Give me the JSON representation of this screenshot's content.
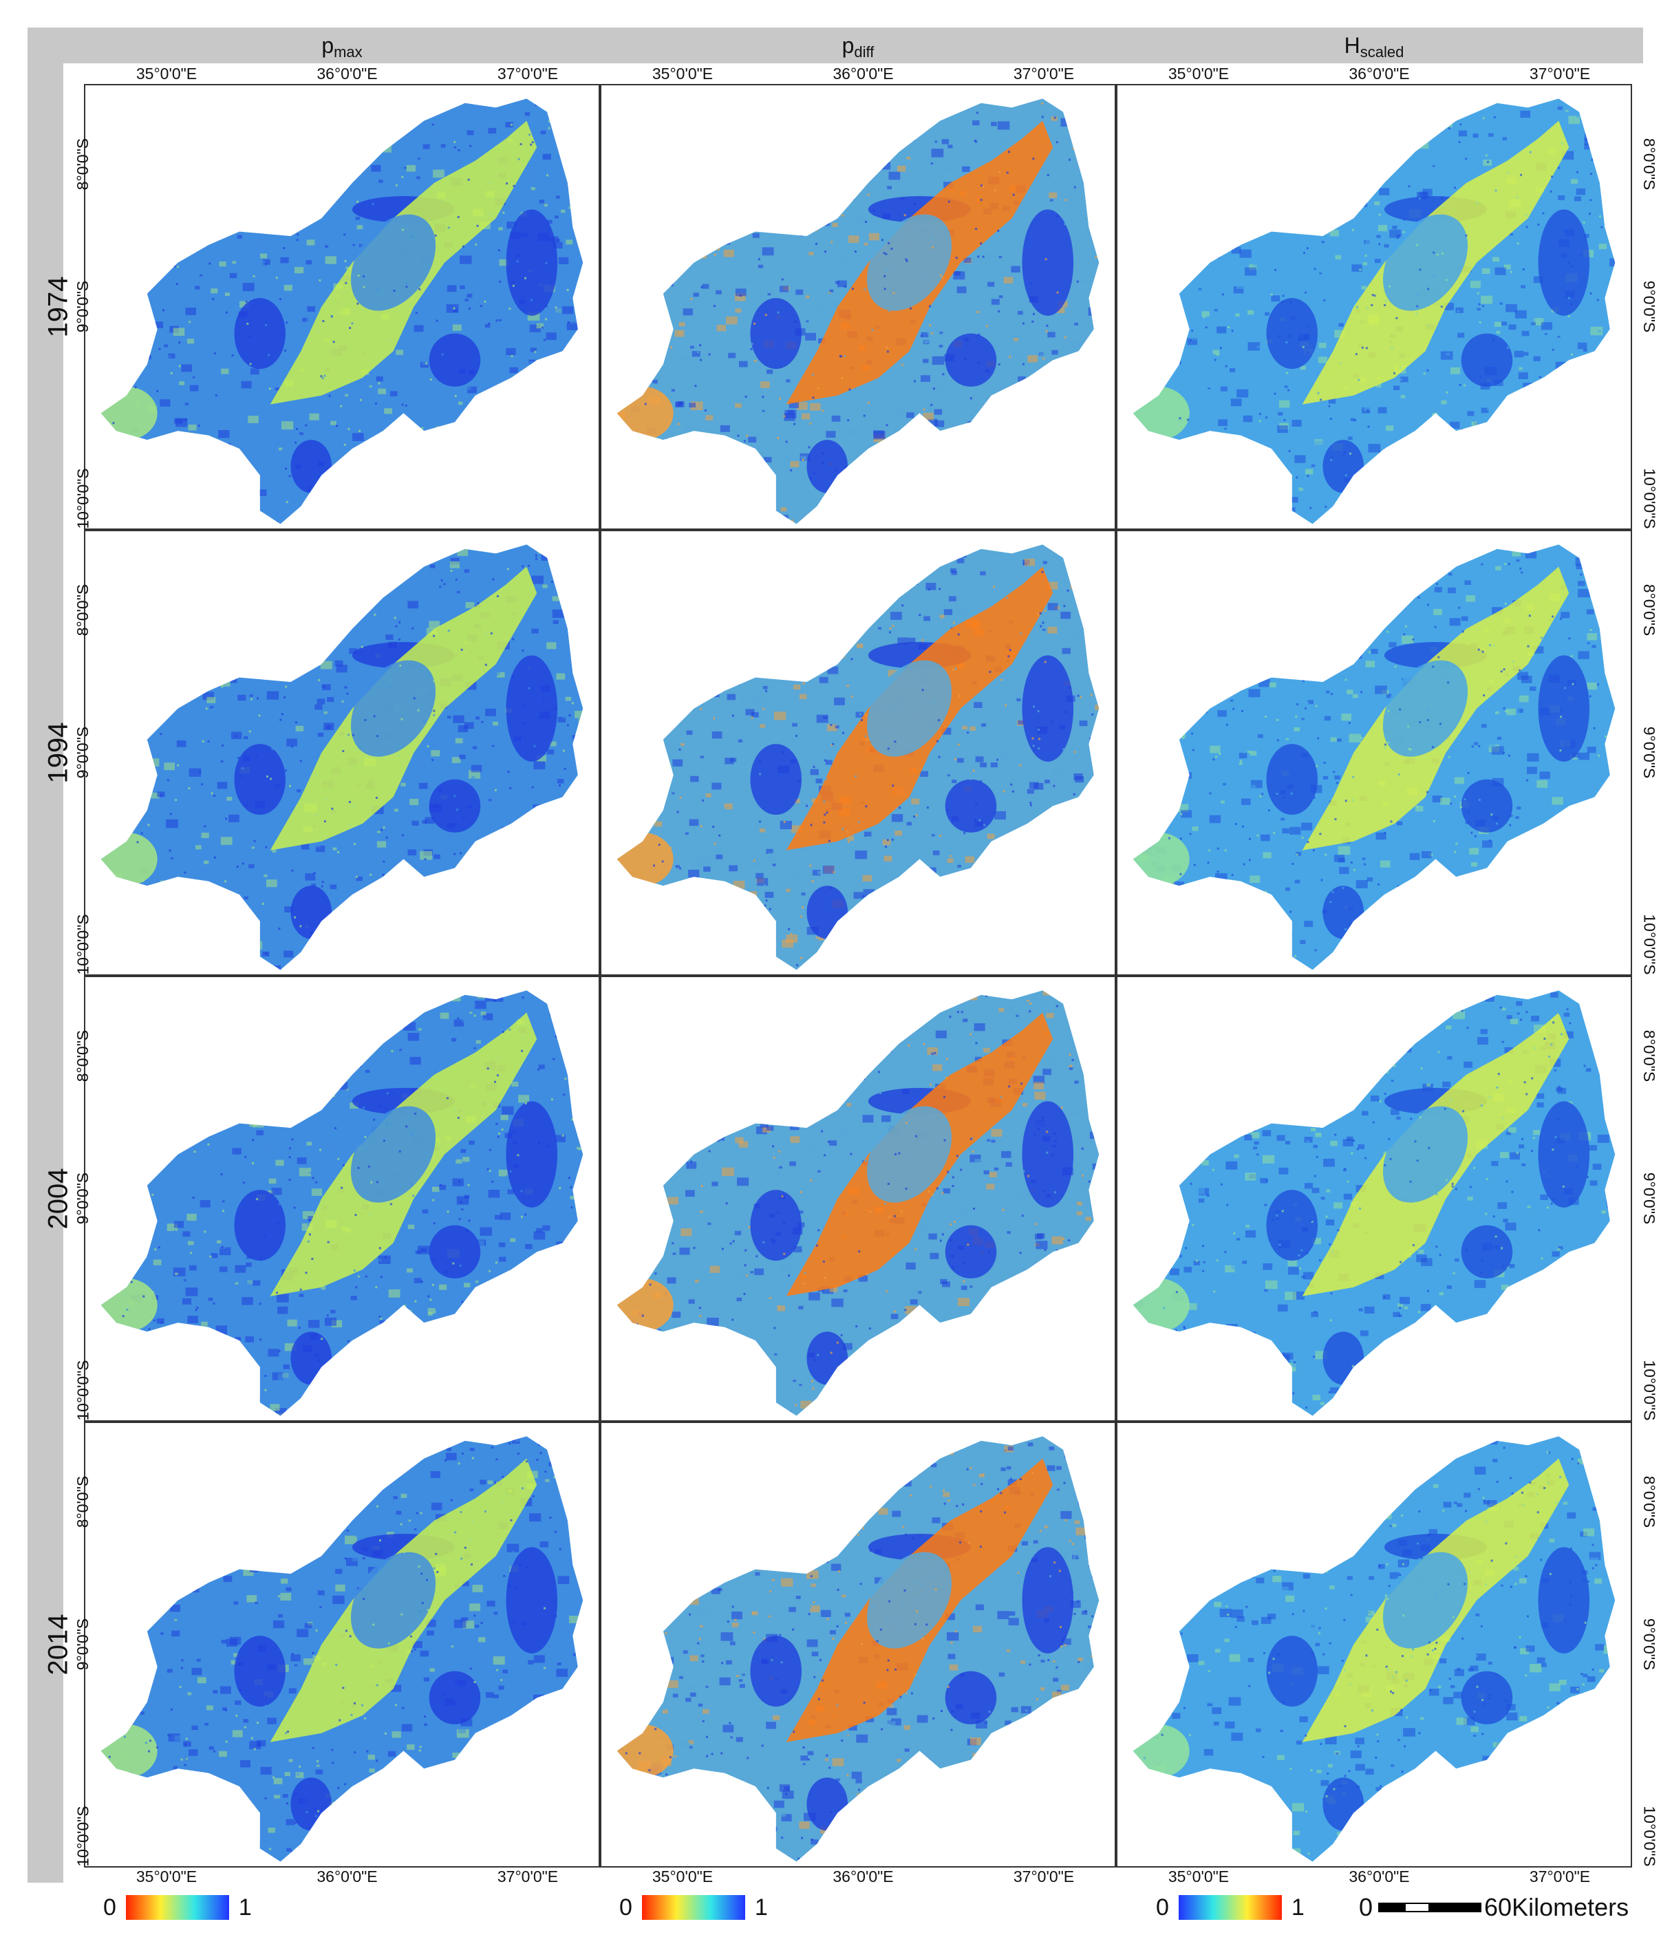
{
  "columns": [
    {
      "main": "p",
      "sub": "max"
    },
    {
      "main": "p",
      "sub": "diff"
    },
    {
      "main": "H",
      "sub": "scaled"
    }
  ],
  "rows": [
    "1974",
    "1994",
    "2004",
    "2014"
  ],
  "lon_ticks": [
    "35°0'0\"E",
    "36°0'0\"E",
    "37°0'0\"E"
  ],
  "lat_ticks": [
    "8°0'0\"S",
    "9°0'0\"S",
    "10°0'0\"S"
  ],
  "legends": [
    {
      "min": "0",
      "max": "1",
      "palette": "red-yellow-cyan-blue",
      "colors": [
        "#ff2200",
        "#ffee33",
        "#33e6e6",
        "#2233ff"
      ]
    },
    {
      "min": "0",
      "max": "1",
      "palette": "red-yellow-cyan-blue",
      "colors": [
        "#ff2200",
        "#ffee33",
        "#33e6e6",
        "#2233ff"
      ]
    },
    {
      "min": "0",
      "max": "1",
      "palette": "blue-cyan-yellow-red",
      "colors": [
        "#2233ff",
        "#33e6e6",
        "#ffee33",
        "#ff2200"
      ]
    }
  ],
  "scalebar": {
    "zero": "0",
    "label": "60Kilometers"
  },
  "panel_colors": {
    "pmax": {
      "base": "#3f8de0",
      "dark": "#1f3fdc",
      "light": "#9fe08a",
      "hot": "#c8f050"
    },
    "pdiff": {
      "base": "#58a8d8",
      "dark": "#1f3fdc",
      "light": "#f0a040",
      "hot": "#ff7a10"
    },
    "hscaled": {
      "base": "#48a6e6",
      "dark": "#1f50dc",
      "light": "#8fe0a0",
      "hot": "#d8f04a"
    }
  }
}
